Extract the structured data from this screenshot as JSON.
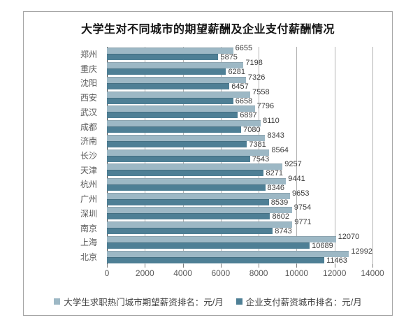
{
  "chart_data": {
    "type": "bar",
    "orientation": "horizontal",
    "title": "大学生对不同城市的期望薪酬及企业支付薪酬情况",
    "categories": [
      "郑州",
      "重庆",
      "沈阳",
      "西安",
      "武汉",
      "成都",
      "济南",
      "长沙",
      "天津",
      "杭州",
      "广州",
      "深圳",
      "南京",
      "上海",
      "北京"
    ],
    "series": [
      {
        "name": "大学生求职热门城市期望薪资排名：元/月",
        "color": "#9db8c5",
        "values": [
          6655,
          7198,
          7326,
          7558,
          7796,
          8110,
          8343,
          8564,
          9257,
          9441,
          9653,
          9754,
          9771,
          12070,
          12992
        ]
      },
      {
        "name": "企业支付薪资城市排名：元/月",
        "color": "#4e7f95",
        "values": [
          5875,
          6281,
          6457,
          6658,
          6897,
          7080,
          7381,
          7543,
          8271,
          8346,
          8539,
          8602,
          8743,
          10689,
          11463
        ]
      }
    ],
    "xlim": [
      0,
      14000
    ],
    "x_ticks": [
      0,
      2000,
      4000,
      6000,
      8000,
      10000,
      12000,
      14000
    ],
    "grid": true,
    "legend_position": "bottom",
    "value_labels": "outside-end"
  }
}
